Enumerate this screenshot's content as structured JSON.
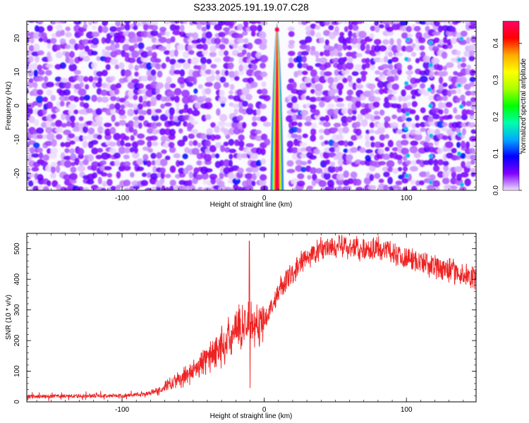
{
  "title": "S233.2025.191.19.07.C28",
  "colors": {
    "snr_line": "#ee2222",
    "axis": "#000000",
    "spectrogram_background": "#ffffff"
  },
  "chart_data": [
    {
      "type": "heatmap",
      "panel": "top",
      "title": "S233.2025.191.19.07.C28",
      "xlabel": "Height of straight line (km)",
      "ylabel": "Frequency (Hz)",
      "xlim": [
        -167,
        149
      ],
      "ylim": [
        -25,
        25
      ],
      "x_ticks": [
        -100,
        0,
        100
      ],
      "y_ticks": [
        -20,
        -10,
        0,
        10,
        20
      ],
      "colorbar": {
        "label": "Normalized spectral amplitude",
        "range": [
          0,
          0.46
        ],
        "ticks": [
          0.0,
          0.1,
          0.2,
          0.3,
          0.4
        ],
        "colormap": [
          "#f0e0ff",
          "#8000ff",
          "#0000ff",
          "#00aaff",
          "#00ffaa",
          "#00ff00",
          "#aaff00",
          "#ffff00",
          "#ffaa00",
          "#ff0000",
          "#ff0066"
        ]
      },
      "features": [
        {
          "name": "main peak",
          "x_center": 9,
          "x_halfwidth": 5,
          "freq_max": 23,
          "amplitude": 0.45
        },
        {
          "name": "periodic spots",
          "x": [
            100,
            117,
            138
          ],
          "amplitude": 0.15
        }
      ],
      "background_amplitude": [
        0.0,
        0.06
      ]
    },
    {
      "type": "line",
      "panel": "bottom",
      "xlabel": "Height of straight line (km)",
      "ylabel": "SNR (10 * v/v)",
      "xlim": [
        -167,
        149
      ],
      "ylim": [
        0,
        550
      ],
      "x_ticks": [
        -100,
        0,
        100
      ],
      "y_ticks": [
        0,
        100,
        200,
        300,
        400,
        500
      ],
      "series": [
        {
          "values_mean": {
            "x": [
              -167,
              -150,
              -120,
              -100,
              -85,
              -75,
              -65,
              -55,
              -45,
              -35,
              -25,
              -15,
              -10,
              -5,
              0,
              5,
              10,
              20,
              30,
              40,
              50,
              60,
              70,
              80,
              90,
              100,
              110,
              120,
              130,
              140,
              149
            ],
            "y": [
              18,
              18,
              20,
              20,
              25,
              35,
              60,
              85,
              120,
              160,
              200,
              250,
              260,
              240,
              270,
              310,
              360,
              420,
              470,
              500,
              505,
              505,
              500,
              500,
              490,
              470,
              455,
              440,
              430,
              415,
              400
            ]
          },
          "spikes": [
            {
              "x": -10.5,
              "y": 525
            },
            {
              "x": -10,
              "y": 45
            }
          ]
        }
      ]
    }
  ]
}
